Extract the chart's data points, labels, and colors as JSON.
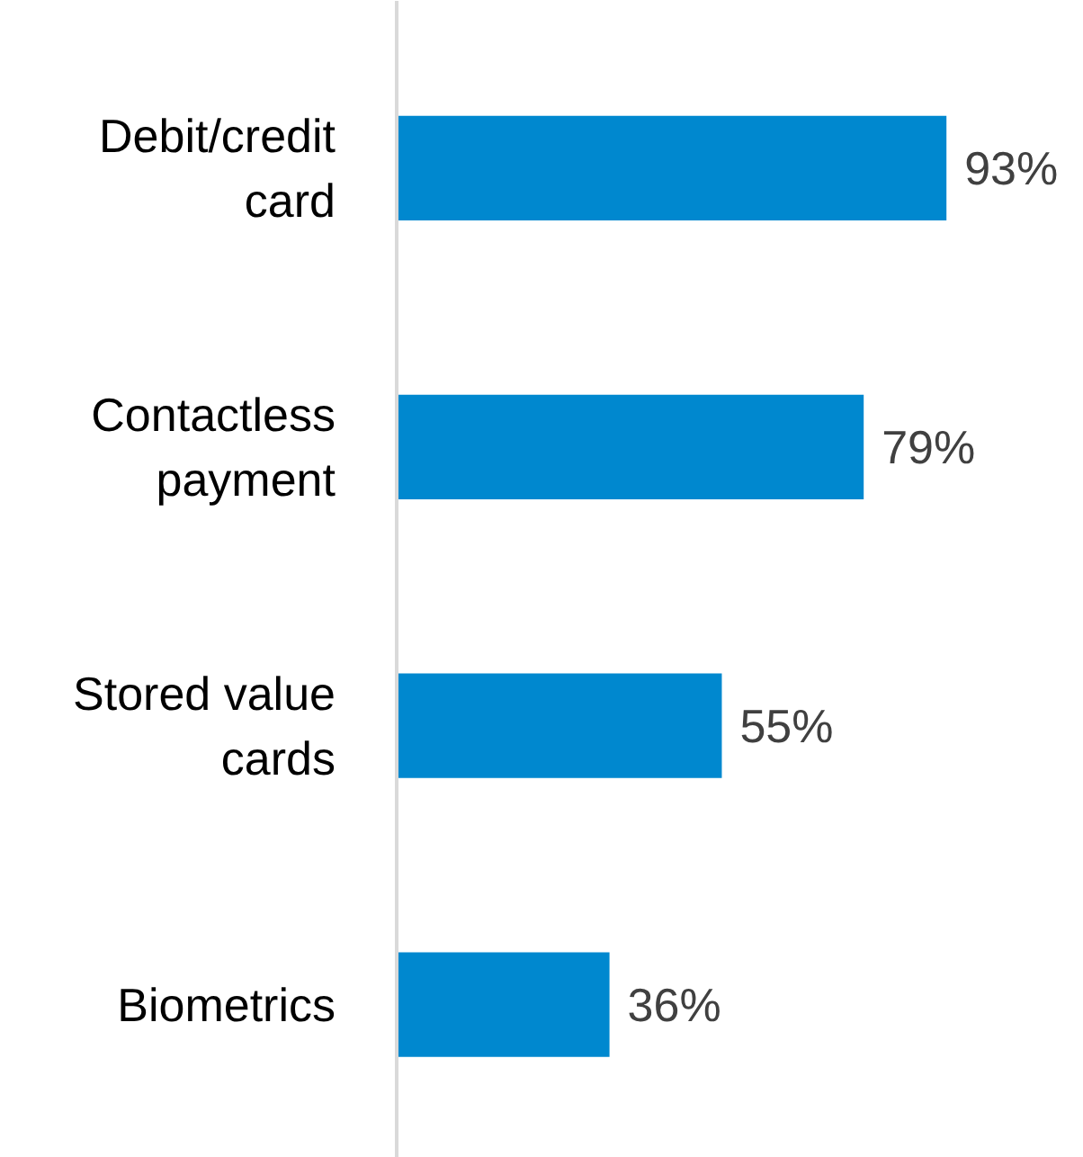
{
  "chart_data": {
    "type": "bar",
    "orientation": "horizontal",
    "categories": [
      "Debit/credit card",
      "Contactless payment",
      "Stored value cards",
      "Biometrics"
    ],
    "values": [
      93,
      79,
      55,
      36
    ],
    "color": "#0088cf",
    "value_labels": [
      "93%",
      "79%",
      "55%",
      "36%"
    ],
    "grid": false,
    "tick_labels": "y"
  }
}
